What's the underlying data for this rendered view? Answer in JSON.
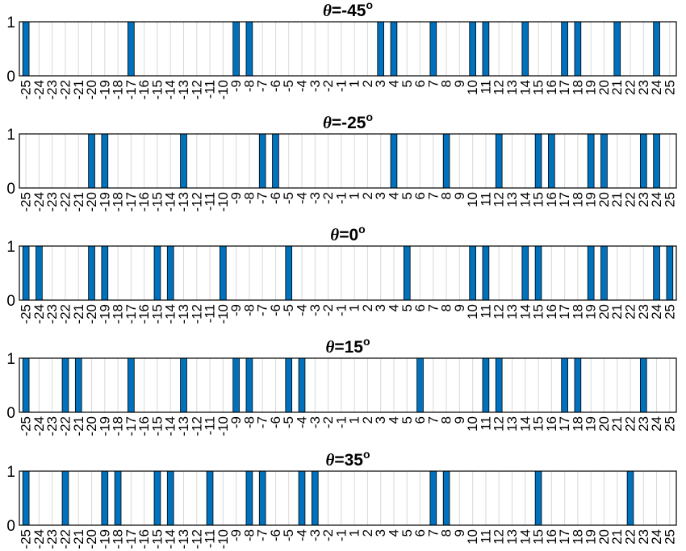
{
  "chart_data": [
    {
      "type": "bar",
      "title_var": "θ",
      "title_value": "=-45",
      "title_sup": "o",
      "categories": [
        -25,
        -24,
        -23,
        -22,
        -21,
        -20,
        -19,
        -18,
        -17,
        -16,
        -15,
        -14,
        -13,
        -12,
        -11,
        -10,
        -9,
        -8,
        -7,
        -6,
        -5,
        -4,
        -3,
        -2,
        -1,
        1,
        2,
        3,
        4,
        5,
        6,
        7,
        8,
        9,
        10,
        11,
        12,
        13,
        14,
        15,
        16,
        17,
        18,
        19,
        20,
        21,
        22,
        23,
        24,
        25
      ],
      "values": [
        1,
        0,
        0,
        0,
        0,
        0,
        0,
        0,
        1,
        0,
        0,
        0,
        0,
        0,
        0,
        0,
        1,
        1,
        0,
        0,
        0,
        0,
        0,
        0,
        0,
        0,
        0,
        1,
        1,
        0,
        0,
        1,
        0,
        0,
        1,
        1,
        0,
        0,
        1,
        0,
        0,
        1,
        1,
        0,
        0,
        1,
        0,
        0,
        1,
        0
      ],
      "ylim": [
        0,
        1
      ],
      "yticks": [
        "0",
        "1"
      ],
      "grid": true
    },
    {
      "type": "bar",
      "title_var": "θ",
      "title_value": "=-25",
      "title_sup": "o",
      "categories": [
        -25,
        -24,
        -23,
        -22,
        -21,
        -20,
        -19,
        -18,
        -17,
        -16,
        -15,
        -14,
        -13,
        -12,
        -11,
        -10,
        -9,
        -8,
        -7,
        -6,
        -5,
        -4,
        -3,
        -2,
        -1,
        1,
        2,
        3,
        4,
        5,
        6,
        7,
        8,
        9,
        10,
        11,
        12,
        13,
        14,
        15,
        16,
        17,
        18,
        19,
        20,
        21,
        22,
        23,
        24,
        25
      ],
      "values": [
        0,
        0,
        0,
        0,
        0,
        1,
        1,
        0,
        0,
        0,
        0,
        0,
        1,
        0,
        0,
        0,
        0,
        0,
        1,
        1,
        0,
        0,
        0,
        0,
        0,
        0,
        0,
        0,
        1,
        0,
        0,
        0,
        1,
        0,
        0,
        0,
        1,
        0,
        0,
        1,
        1,
        0,
        0,
        1,
        1,
        0,
        0,
        1,
        1,
        0
      ],
      "ylim": [
        0,
        1
      ],
      "yticks": [
        "0",
        "1"
      ],
      "grid": true
    },
    {
      "type": "bar",
      "title_var": "θ",
      "title_value": "=0",
      "title_sup": "o",
      "categories": [
        -25,
        -24,
        -23,
        -22,
        -21,
        -20,
        -19,
        -18,
        -17,
        -16,
        -15,
        -14,
        -13,
        -12,
        -11,
        -10,
        -9,
        -8,
        -7,
        -6,
        -5,
        -4,
        -3,
        -2,
        -1,
        1,
        2,
        3,
        4,
        5,
        6,
        7,
        8,
        9,
        10,
        11,
        12,
        13,
        14,
        15,
        16,
        17,
        18,
        19,
        20,
        21,
        22,
        23,
        24,
        25
      ],
      "values": [
        1,
        1,
        0,
        0,
        0,
        1,
        1,
        0,
        0,
        0,
        1,
        1,
        0,
        0,
        0,
        1,
        0,
        0,
        0,
        0,
        1,
        0,
        0,
        0,
        0,
        0,
        0,
        0,
        0,
        1,
        0,
        0,
        0,
        0,
        1,
        1,
        0,
        0,
        1,
        1,
        0,
        0,
        0,
        1,
        1,
        0,
        0,
        0,
        1,
        1
      ],
      "ylim": [
        0,
        1
      ],
      "yticks": [
        "0",
        "1"
      ],
      "grid": true
    },
    {
      "type": "bar",
      "title_var": "θ",
      "title_value": "=15",
      "title_sup": "o",
      "categories": [
        -25,
        -24,
        -23,
        -22,
        -21,
        -20,
        -19,
        -18,
        -17,
        -16,
        -15,
        -14,
        -13,
        -12,
        -11,
        -10,
        -9,
        -8,
        -7,
        -6,
        -5,
        -4,
        -3,
        -2,
        -1,
        1,
        2,
        3,
        4,
        5,
        6,
        7,
        8,
        9,
        10,
        11,
        12,
        13,
        14,
        15,
        16,
        17,
        18,
        19,
        20,
        21,
        22,
        23,
        24,
        25
      ],
      "values": [
        1,
        0,
        0,
        1,
        1,
        0,
        0,
        0,
        1,
        0,
        0,
        0,
        1,
        0,
        0,
        0,
        1,
        1,
        0,
        0,
        1,
        1,
        0,
        0,
        0,
        0,
        0,
        0,
        0,
        0,
        1,
        0,
        0,
        0,
        0,
        1,
        1,
        0,
        0,
        0,
        0,
        1,
        1,
        0,
        0,
        0,
        0,
        1,
        0,
        0
      ],
      "ylim": [
        0,
        1
      ],
      "yticks": [
        "0",
        "1"
      ],
      "grid": true
    },
    {
      "type": "bar",
      "title_var": "θ",
      "title_value": "=35",
      "title_sup": "o",
      "categories": [
        -25,
        -24,
        -23,
        -22,
        -21,
        -20,
        -19,
        -18,
        -17,
        -16,
        -15,
        -14,
        -13,
        -12,
        -11,
        -10,
        -9,
        -8,
        -7,
        -6,
        -5,
        -4,
        -3,
        -2,
        -1,
        1,
        2,
        3,
        4,
        5,
        6,
        7,
        8,
        9,
        10,
        11,
        12,
        13,
        14,
        15,
        16,
        17,
        18,
        19,
        20,
        21,
        22,
        23,
        24,
        25
      ],
      "values": [
        1,
        0,
        0,
        1,
        0,
        0,
        1,
        1,
        0,
        0,
        1,
        1,
        0,
        0,
        1,
        0,
        0,
        1,
        1,
        0,
        0,
        1,
        1,
        0,
        0,
        0,
        0,
        0,
        0,
        0,
        0,
        1,
        1,
        0,
        0,
        0,
        0,
        0,
        0,
        1,
        0,
        0,
        0,
        0,
        0,
        0,
        1,
        0,
        0,
        0
      ],
      "ylim": [
        0,
        1
      ],
      "yticks": [
        "0",
        "1"
      ],
      "grid": true
    }
  ],
  "colors": {
    "bar": "#0072BD",
    "bar_edge": "#000000",
    "grid": "#d9d9d9",
    "axis": "#000000"
  }
}
